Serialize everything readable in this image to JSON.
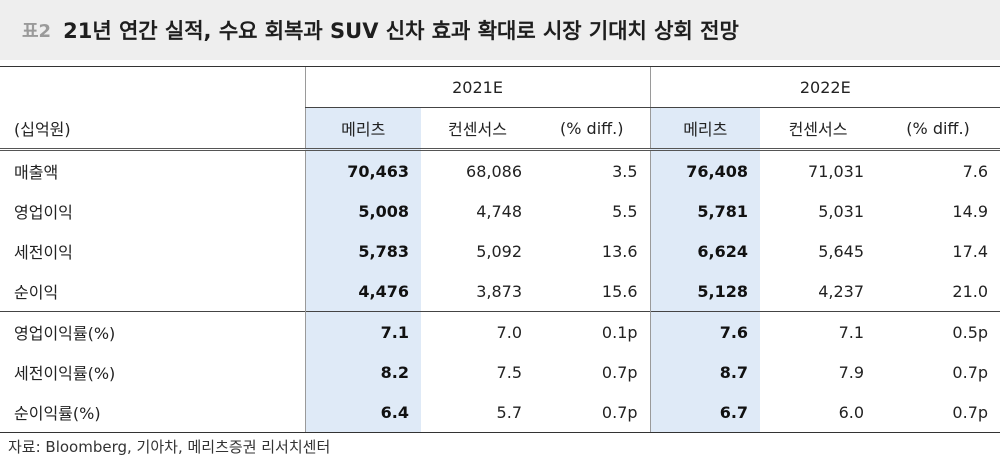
{
  "title": {
    "tag": "표2",
    "text": "21년 연간 실적, 수요 회복과 SUV 신차 효과 확대로 시장 기대치 상회 전망"
  },
  "table": {
    "unit_label": "(십억원)",
    "years": [
      "2021E",
      "2022E"
    ],
    "subheaders": [
      "메리츠",
      "컨센서스",
      "(% diff.)",
      "메리츠",
      "컨센서스",
      "(% diff.)"
    ],
    "rows": [
      {
        "label": "매출액",
        "values": [
          "70,463",
          "68,086",
          "3.5",
          "76,408",
          "71,031",
          "7.6"
        ]
      },
      {
        "label": "영업이익",
        "values": [
          "5,008",
          "4,748",
          "5.5",
          "5,781",
          "5,031",
          "14.9"
        ]
      },
      {
        "label": "세전이익",
        "values": [
          "5,783",
          "5,092",
          "13.6",
          "6,624",
          "5,645",
          "17.4"
        ]
      },
      {
        "label": "순이익",
        "values": [
          "4,476",
          "3,873",
          "15.6",
          "5,128",
          "4,237",
          "21.0"
        ]
      },
      {
        "label": "영업이익률(%)",
        "values": [
          "7.1",
          "7.0",
          "0.1p",
          "7.6",
          "7.1",
          "0.5p"
        ]
      },
      {
        "label": "세전이익률(%)",
        "values": [
          "8.2",
          "7.5",
          "0.7p",
          "8.7",
          "7.9",
          "0.7p"
        ]
      },
      {
        "label": "순이익률(%)",
        "values": [
          "6.4",
          "5.7",
          "0.7p",
          "6.7",
          "6.0",
          "0.7p"
        ]
      }
    ]
  },
  "source": "자료: Bloomberg, 기아차, 메리츠증권 리서치센터",
  "colors": {
    "highlight": "#dfeaf7",
    "title_bg": "#eeeeee",
    "tag": "#9a9a9a"
  }
}
